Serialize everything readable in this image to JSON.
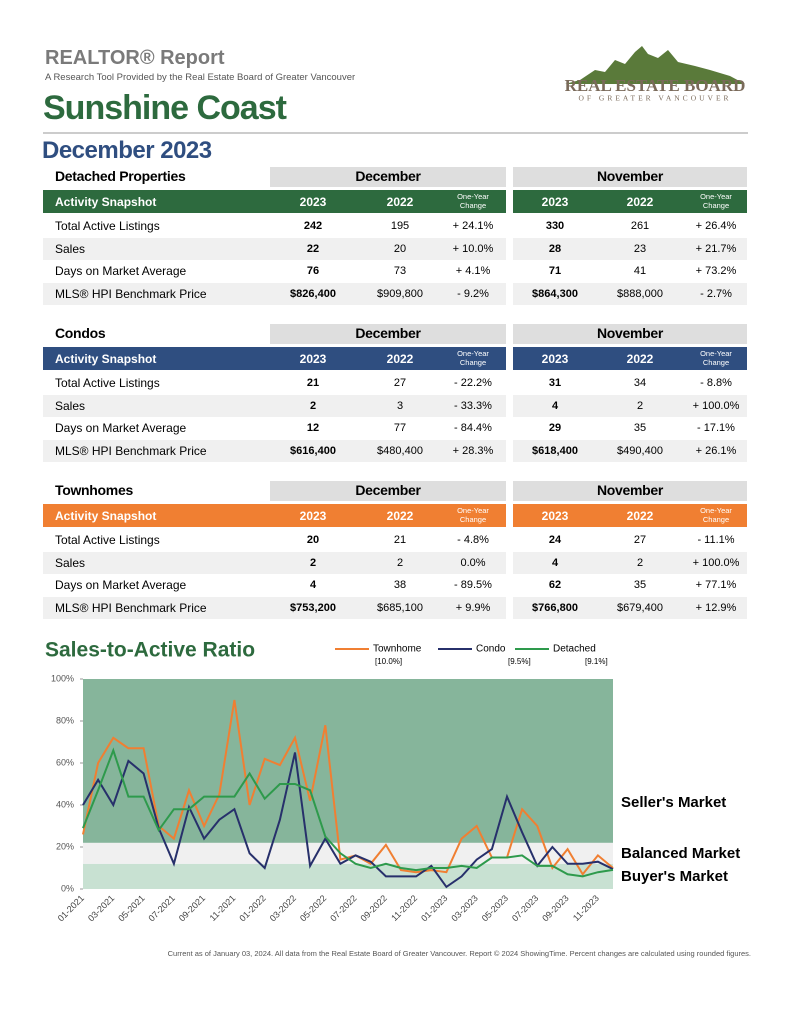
{
  "header": {
    "title": "REALTOR® Report",
    "subtitle": "A Research Tool Provided by the Real Estate Board of Greater Vancouver",
    "area": "Sunshine Coast",
    "period": "December 2023",
    "logo_title": "REAL ESTATE BOARD",
    "logo_subtitle": "OF GREATER VANCOUVER"
  },
  "tables": [
    {
      "name": "Detached Properties",
      "color": "#2d6a3e",
      "groups": [
        "December",
        "November"
      ],
      "header": [
        "Activity Snapshot",
        "2023",
        "2022",
        "One-Year Change",
        "2023",
        "2022",
        "One-Year Change"
      ],
      "rows": [
        [
          "Total Active Listings",
          "242",
          "195",
          "+ 24.1%",
          "330",
          "261",
          "+ 26.4%"
        ],
        [
          "Sales",
          "22",
          "20",
          "+ 10.0%",
          "28",
          "23",
          "+ 21.7%"
        ],
        [
          "Days on Market Average",
          "76",
          "73",
          "+ 4.1%",
          "71",
          "41",
          "+ 73.2%"
        ],
        [
          "MLS® HPI Benchmark Price",
          "$826,400",
          "$909,800",
          "- 9.2%",
          "$864,300",
          "$888,000",
          "- 2.7%"
        ]
      ]
    },
    {
      "name": "Condos",
      "color": "#2f4e80",
      "groups": [
        "December",
        "November"
      ],
      "header": [
        "Activity Snapshot",
        "2023",
        "2022",
        "One-Year Change",
        "2023",
        "2022",
        "One-Year Change"
      ],
      "rows": [
        [
          "Total Active Listings",
          "21",
          "27",
          "- 22.2%",
          "31",
          "34",
          "- 8.8%"
        ],
        [
          "Sales",
          "2",
          "3",
          "- 33.3%",
          "4",
          "2",
          "+ 100.0%"
        ],
        [
          "Days on Market Average",
          "12",
          "77",
          "- 84.4%",
          "29",
          "35",
          "- 17.1%"
        ],
        [
          "MLS® HPI Benchmark Price",
          "$616,400",
          "$480,400",
          "+ 28.3%",
          "$618,400",
          "$490,400",
          "+ 26.1%"
        ]
      ]
    },
    {
      "name": "Townhomes",
      "color": "#f07f32",
      "groups": [
        "December",
        "November"
      ],
      "header": [
        "Activity Snapshot",
        "2023",
        "2022",
        "One-Year Change",
        "2023",
        "2022",
        "One-Year Change"
      ],
      "rows": [
        [
          "Total Active Listings",
          "20",
          "21",
          "- 4.8%",
          "24",
          "27",
          "- 11.1%"
        ],
        [
          "Sales",
          "2",
          "2",
          "0.0%",
          "4",
          "2",
          "+ 100.0%"
        ],
        [
          "Days on Market Average",
          "4",
          "38",
          "- 89.5%",
          "62",
          "35",
          "+ 77.1%"
        ],
        [
          "MLS® HPI Benchmark Price",
          "$753,200",
          "$685,100",
          "+ 9.9%",
          "$766,800",
          "$679,400",
          "+ 12.9%"
        ]
      ]
    }
  ],
  "chart_data": {
    "type": "line",
    "title": "Sales-to-Active Ratio",
    "categories": [
      "01-2021",
      null,
      "03-2021",
      null,
      "05-2021",
      null,
      "07-2021",
      null,
      "09-2021",
      null,
      "11-2021",
      null,
      "01-2022",
      null,
      "03-2022",
      null,
      "05-2022",
      null,
      "07-2022",
      null,
      "09-2022",
      null,
      "11-2022",
      null,
      "01-2023",
      null,
      "03-2023",
      null,
      "05-2023",
      null,
      "07-2023",
      null,
      "09-2023",
      null,
      "11-2023",
      null
    ],
    "series": [
      {
        "name": "Townhome",
        "color": "#f07f32",
        "legend_note": "[10.0%]",
        "values": [
          26,
          60,
          72,
          67,
          67,
          30,
          24,
          47,
          30,
          45,
          90,
          40,
          62,
          59,
          72,
          42,
          78,
          14,
          16,
          12,
          21,
          9,
          8,
          9,
          8,
          24,
          30,
          15,
          15,
          38,
          30,
          10,
          19,
          7,
          16,
          10
        ]
      },
      {
        "name": "Condo",
        "color": "#27306b",
        "legend_note": "[9.5%]",
        "values": [
          40,
          52,
          40,
          61,
          55,
          29,
          12,
          39,
          24,
          33,
          38,
          17,
          10,
          33,
          65,
          11,
          24,
          12,
          16,
          13,
          6,
          6,
          6,
          11,
          1,
          6,
          14,
          19,
          44,
          27,
          11,
          20,
          12,
          12,
          13,
          9.5
        ]
      },
      {
        "name": "Detached",
        "color": "#2e9a4c",
        "legend_note": "[9.1%]",
        "values": [
          29,
          47,
          66,
          44,
          44,
          28,
          38,
          38,
          44,
          44,
          44,
          55,
          43,
          50,
          50,
          47,
          25,
          17,
          12,
          10,
          12,
          10,
          9,
          10,
          10,
          11,
          10,
          15,
          15,
          16,
          11,
          11,
          7,
          6,
          8,
          9.1
        ]
      }
    ],
    "ylim": [
      0,
      100
    ],
    "yticks": [
      {
        "value": 0,
        "label": "0%"
      },
      {
        "value": 20,
        "label": "20%"
      },
      {
        "value": 40,
        "label": "40%"
      },
      {
        "value": 60,
        "label": "60%"
      },
      {
        "value": 80,
        "label": "80%"
      },
      {
        "value": 100,
        "label": "100%"
      }
    ],
    "zones": [
      {
        "label": "Buyer's Market",
        "from": 0,
        "to": 12,
        "color": "#c8e1d2"
      },
      {
        "label": "Balanced Market",
        "from": 12,
        "to": 22,
        "color": "#f0f0f0"
      },
      {
        "label": "Seller's Market",
        "from": 22,
        "to": 100,
        "color": "#86b59b"
      }
    ]
  },
  "footer": "Current as of January 03, 2024. All data from the Real Estate Board of Greater Vancouver. Report © 2024 ShowingTime. Percent changes are calculated using rounded figures."
}
